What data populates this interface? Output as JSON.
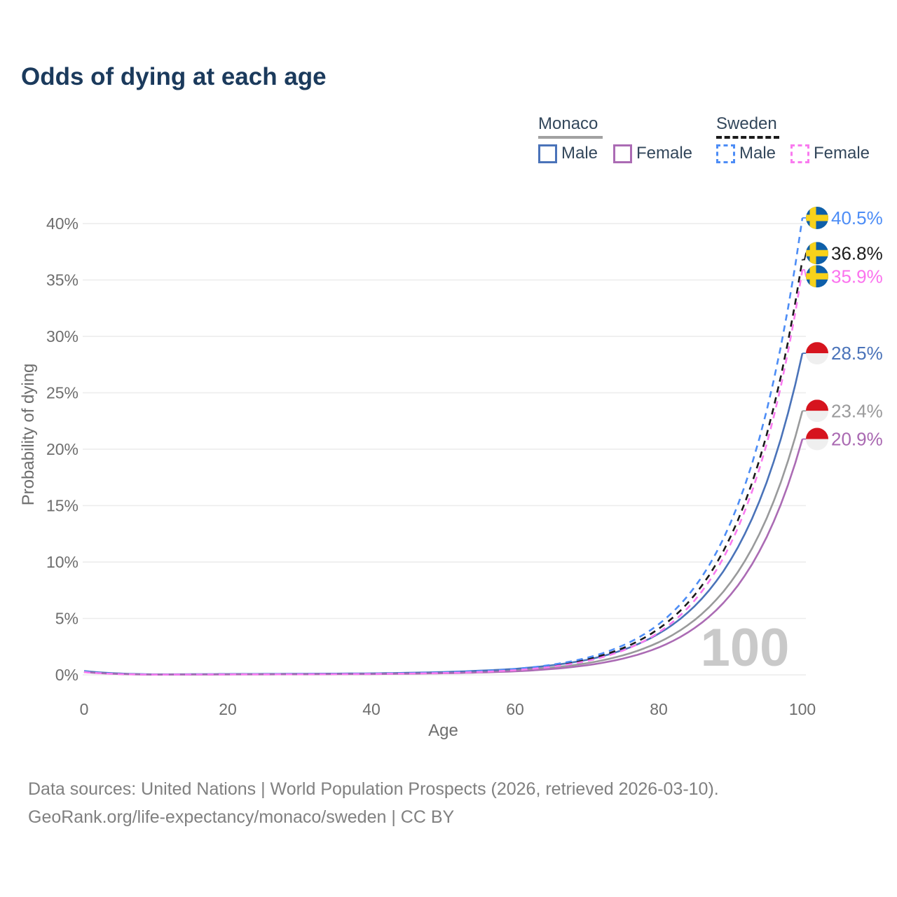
{
  "title": "Odds of dying at each age",
  "legend": {
    "groups": [
      {
        "name": "Monaco",
        "line_style": "solid",
        "underline_color": "#a1a1a1",
        "items": [
          {
            "label": "Male",
            "color": "#4a73b9",
            "dash": false
          },
          {
            "label": "Female",
            "color": "#ab6bb4",
            "dash": false
          }
        ]
      },
      {
        "name": "Sweden",
        "line_style": "dashed",
        "underline_color": "#1a1a1a",
        "items": [
          {
            "label": "Male",
            "color": "#4d8df6",
            "dash": true
          },
          {
            "label": "Female",
            "color": "#f97bef",
            "dash": true
          }
        ]
      }
    ]
  },
  "chart_data": {
    "type": "line",
    "title": "Odds of dying at each age",
    "xlabel": "Age",
    "ylabel": "Probability of dying",
    "xlim": [
      0,
      100
    ],
    "ylim_pct": [
      0,
      42
    ],
    "x_ticks": [
      0,
      20,
      40,
      60,
      80,
      100
    ],
    "y_ticks_pct": [
      0,
      5,
      10,
      15,
      20,
      25,
      30,
      35,
      40
    ],
    "y_tick_suffix": "%",
    "grid": "horizontal-only",
    "watermark": "100",
    "anchor_ages": [
      0,
      10,
      20,
      30,
      40,
      50,
      60,
      70,
      80,
      90,
      100
    ],
    "series": [
      {
        "id": "monaco_both",
        "country": "Monaco",
        "sex": "both",
        "color": "#999a9b",
        "dash": false,
        "flag": "monaco",
        "values_pct": [
          0.3,
          0.03,
          0.05,
          0.07,
          0.1,
          0.19,
          0.4,
          1.03,
          2.89,
          8.19,
          23.4
        ],
        "end_label": "23.4%",
        "label_color": "#9a9a9b"
      },
      {
        "id": "monaco_male",
        "country": "Monaco",
        "sex": "male",
        "color": "#4a73b9",
        "dash": false,
        "flag": "monaco",
        "values_pct": [
          0.34,
          0.04,
          0.07,
          0.09,
          0.13,
          0.25,
          0.53,
          1.33,
          3.65,
          10.18,
          28.5
        ],
        "end_label": "28.5%",
        "label_color": "#4a73b9"
      },
      {
        "id": "monaco_female",
        "country": "Monaco",
        "sex": "female",
        "color": "#ab6bb4",
        "dash": false,
        "flag": "monaco",
        "values_pct": [
          0.26,
          0.02,
          0.04,
          0.05,
          0.07,
          0.14,
          0.31,
          0.85,
          2.43,
          7.1,
          20.9
        ],
        "end_label": "20.9%",
        "label_color": "#a968b1"
      },
      {
        "id": "sweden_both",
        "country": "Sweden",
        "sex": "both",
        "color": "#1a1a1a",
        "dash": true,
        "flag": "sweden",
        "values_pct": [
          0.26,
          0.03,
          0.05,
          0.07,
          0.1,
          0.2,
          0.47,
          1.37,
          4.09,
          12.25,
          36.8
        ],
        "end_label": "36.8%",
        "label_color": "#1d1d1d"
      },
      {
        "id": "sweden_male",
        "country": "Sweden",
        "sex": "male",
        "color": "#4d8df6",
        "dash": true,
        "flag": "sweden",
        "values_pct": [
          0.3,
          0.03,
          0.06,
          0.08,
          0.11,
          0.22,
          0.52,
          1.51,
          4.49,
          13.48,
          40.5
        ],
        "end_label": "40.5%",
        "label_color": "#4d8df6"
      },
      {
        "id": "sweden_female",
        "country": "Sweden",
        "sex": "female",
        "color": "#f97bef",
        "dash": true,
        "flag": "sweden",
        "values_pct": [
          0.24,
          0.02,
          0.04,
          0.05,
          0.08,
          0.16,
          0.41,
          1.23,
          3.76,
          11.6,
          35.9
        ],
        "end_label": "35.9%",
        "label_color": "#fb72ee"
      }
    ],
    "flag_colors": {
      "sweden": {
        "field": "#0e5fa9",
        "cross": "#f8d21a"
      },
      "monaco": {
        "top": "#d6141e",
        "bottom": "#efefef"
      }
    }
  },
  "footer": {
    "line1": "Data sources: United Nations | World Population Prospects (2026, retrieved 2026-03-10).",
    "line2": "GeoRank.org/life-expectancy/monaco/sweden | CC BY"
  }
}
